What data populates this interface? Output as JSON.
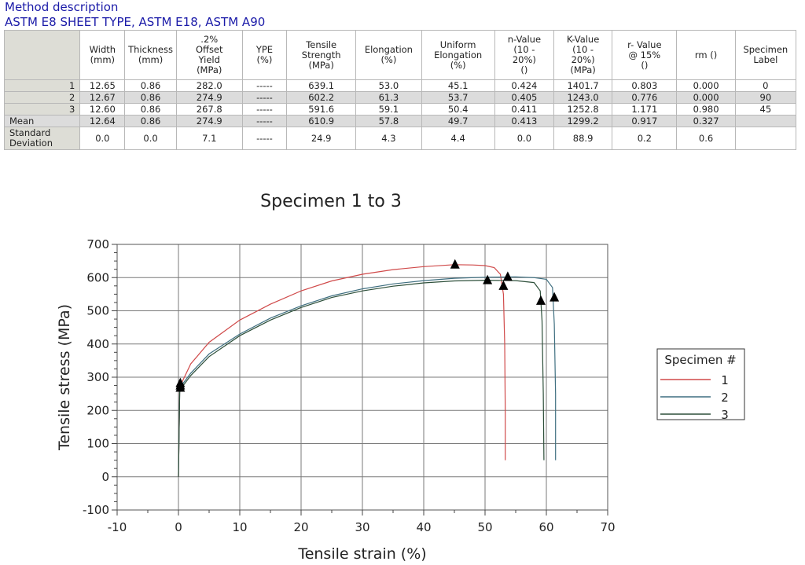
{
  "header": {
    "method": "Method description",
    "standards": "ASTM E8 SHEET TYPE, ASTM E18, ASTM A90"
  },
  "table": {
    "columns": [
      "Width\n(mm)",
      "Thickness\n(mm)",
      ".2%\nOffset\nYield\n(MPa)",
      "YPE\n(%)",
      "Tensile\nStrength\n(MPa)",
      "Elongation\n(%)",
      "Uniform\nElongation\n(%)",
      "n-Value\n(10 -\n20%)\n()",
      "K-Value\n(10 -\n20%)\n(MPa)",
      "r- Value\n@ 15%\n()",
      "rm ()",
      "Specimen Label"
    ],
    "rows": [
      {
        "label": "1",
        "cells": [
          "12.65",
          "0.86",
          "282.0",
          "-----",
          "639.1",
          "53.0",
          "45.1",
          "0.424",
          "1401.7",
          "0.803",
          "0.000",
          "0"
        ]
      },
      {
        "label": "2",
        "cells": [
          "12.67",
          "0.86",
          "274.9",
          "-----",
          "602.2",
          "61.3",
          "53.7",
          "0.405",
          "1243.0",
          "0.776",
          "0.000",
          "90"
        ]
      },
      {
        "label": "3",
        "cells": [
          "12.60",
          "0.86",
          "267.8",
          "-----",
          "591.6",
          "59.1",
          "50.4",
          "0.411",
          "1252.8",
          "1.171",
          "0.980",
          "45"
        ]
      },
      {
        "label": "Mean",
        "cells": [
          "12.64",
          "0.86",
          "274.9",
          "-----",
          "610.9",
          "57.8",
          "49.7",
          "0.413",
          "1299.2",
          "0.917",
          "0.327",
          ""
        ]
      },
      {
        "label": "Standard Deviation",
        "cells": [
          "0.0",
          "0.0",
          "7.1",
          "-----",
          "24.9",
          "4.3",
          "4.4",
          "0.0",
          "88.9",
          "0.2",
          "0.6",
          ""
        ]
      }
    ]
  },
  "chart_data": {
    "type": "line",
    "title": "Specimen 1 to 3",
    "xlabel": "Tensile strain (%)",
    "ylabel": "Tensile stress (MPa)",
    "xlim": [
      -10,
      70
    ],
    "ylim": [
      -100,
      700
    ],
    "xticks": [
      -10,
      0,
      10,
      20,
      30,
      40,
      50,
      60,
      70
    ],
    "yticks": [
      -100,
      0,
      100,
      200,
      300,
      400,
      500,
      600,
      700
    ],
    "grid": true,
    "legend_title": "Specimen #",
    "legend_position": "right",
    "series": [
      {
        "name": "1",
        "color": "#d04a4a",
        "x": [
          0,
          0.2,
          0.5,
          2,
          5,
          10,
          15,
          20,
          25,
          30,
          35,
          40,
          45,
          48,
          50,
          51.5,
          52.5,
          53.0,
          53.2,
          53.3,
          53.3
        ],
        "y": [
          0,
          270,
          282,
          340,
          405,
          472,
          520,
          560,
          590,
          610,
          624,
          633,
          639,
          638,
          636,
          630,
          610,
          550,
          400,
          200,
          50
        ]
      },
      {
        "name": "2",
        "color": "#3f6f80",
        "x": [
          0,
          0.2,
          0.5,
          2,
          5,
          10,
          15,
          20,
          25,
          30,
          35,
          40,
          45,
          50,
          55,
          58,
          60,
          61,
          61.3,
          61.5,
          61.5
        ],
        "y": [
          0,
          262,
          275,
          312,
          370,
          430,
          478,
          515,
          545,
          566,
          581,
          591,
          598,
          601,
          602,
          600,
          595,
          570,
          460,
          250,
          50
        ]
      },
      {
        "name": "3",
        "color": "#2d4f3a",
        "x": [
          0,
          0.2,
          0.5,
          2,
          5,
          10,
          15,
          20,
          25,
          30,
          35,
          40,
          45,
          50,
          55,
          58,
          59.0,
          59.3,
          59.5,
          59.6
        ],
        "y": [
          0,
          255,
          268,
          305,
          362,
          425,
          472,
          510,
          540,
          560,
          574,
          584,
          590,
          592,
          591,
          585,
          560,
          470,
          250,
          50
        ]
      }
    ],
    "markers": [
      {
        "x": 0.3,
        "y": 282
      },
      {
        "x": 0.3,
        "y": 275
      },
      {
        "x": 0.3,
        "y": 268
      },
      {
        "x": 45.1,
        "y": 639
      },
      {
        "x": 53.7,
        "y": 602
      },
      {
        "x": 50.4,
        "y": 592
      },
      {
        "x": 53.0,
        "y": 575
      },
      {
        "x": 61.3,
        "y": 540
      },
      {
        "x": 59.1,
        "y": 530
      }
    ]
  }
}
